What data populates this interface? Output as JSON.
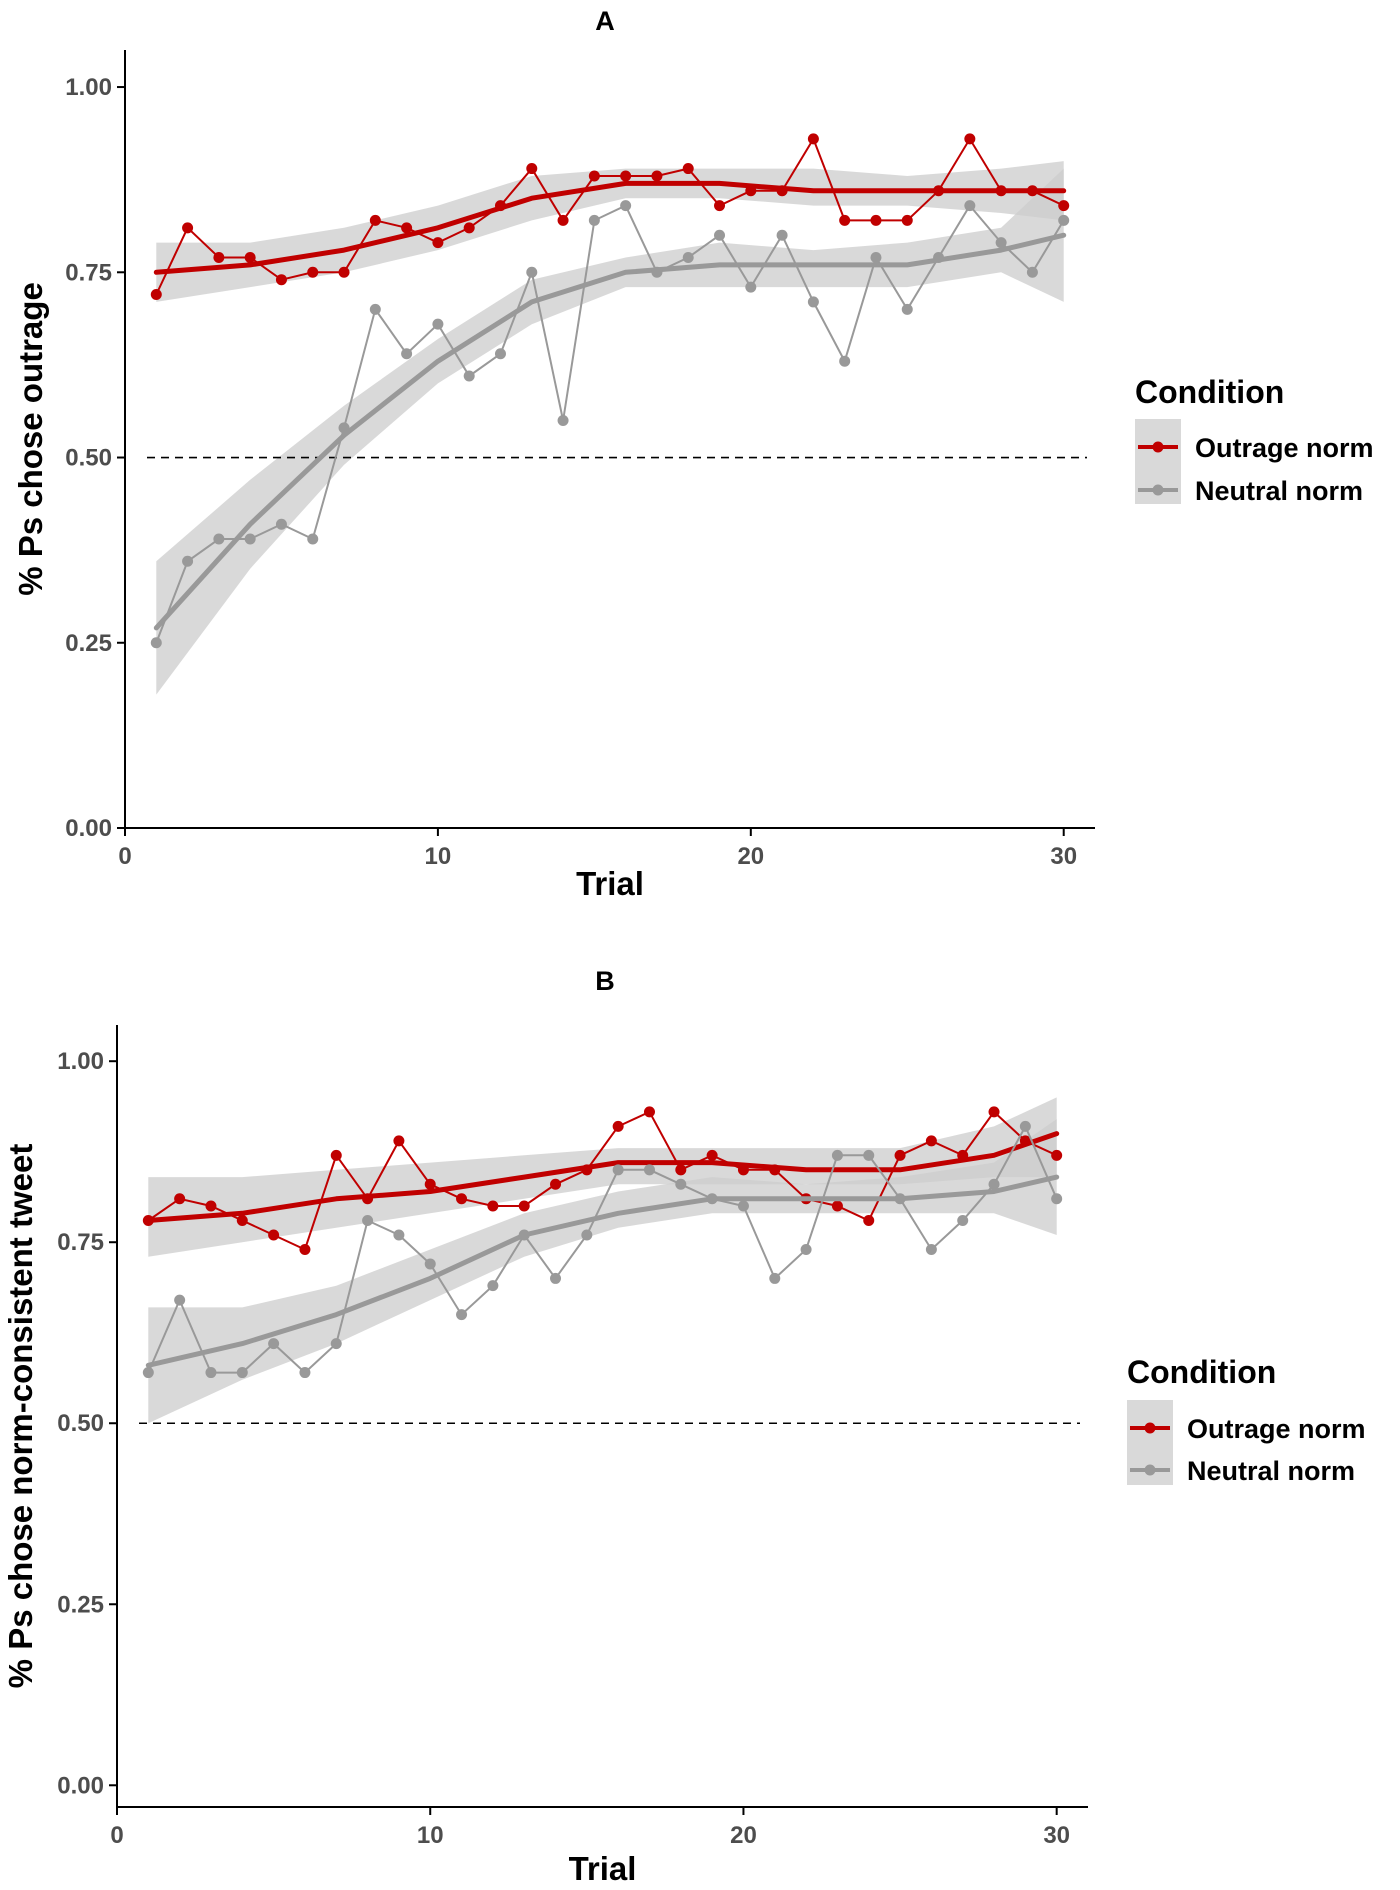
{
  "colors": {
    "outrage": "#c00000",
    "neutral": "#999999",
    "ribbon": "#cccccc",
    "axis": "#000000",
    "tick_text": "#4d4d4d",
    "reference_line": "#000000"
  },
  "chart_data": [
    {
      "type": "line",
      "panel_label": "A",
      "xlabel": "Trial",
      "ylabel": "% Ps chose outrage",
      "xlim": [
        0,
        31
      ],
      "ylim": [
        0,
        1.05
      ],
      "x_ticks": [
        0,
        10,
        20,
        30
      ],
      "x_tick_labels": [
        "0",
        "10",
        "20",
        "30"
      ],
      "y_ticks": [
        0,
        0.25,
        0.5,
        0.75,
        1.0
      ],
      "y_tick_labels": [
        "0.00",
        "0.25",
        "0.50",
        "0.75",
        "1.00"
      ],
      "reference_line": 0.5,
      "grid": false,
      "legend": {
        "title": "Condition",
        "position": "right",
        "entries": [
          "Outrage norm",
          "Neutral norm"
        ]
      },
      "x": [
        1,
        2,
        3,
        4,
        5,
        6,
        7,
        8,
        9,
        10,
        11,
        12,
        13,
        14,
        15,
        16,
        17,
        18,
        19,
        20,
        21,
        22,
        23,
        24,
        25,
        26,
        27,
        28,
        29,
        30
      ],
      "series": [
        {
          "name": "Outrage norm",
          "color_key": "outrage",
          "values": [
            0.72,
            0.81,
            0.77,
            0.77,
            0.74,
            0.75,
            0.75,
            0.82,
            0.81,
            0.79,
            0.81,
            0.84,
            0.89,
            0.82,
            0.88,
            0.88,
            0.88,
            0.89,
            0.84,
            0.86,
            0.86,
            0.93,
            0.82,
            0.82,
            0.82,
            0.86,
            0.93,
            0.86,
            0.86,
            0.84
          ],
          "smooth": {
            "x": [
              1,
              4,
              7,
              10,
              13,
              16,
              19,
              22,
              25,
              28,
              30
            ],
            "y": [
              0.75,
              0.76,
              0.78,
              0.81,
              0.85,
              0.87,
              0.87,
              0.86,
              0.86,
              0.86,
              0.86
            ],
            "lower": [
              0.71,
              0.73,
              0.75,
              0.78,
              0.82,
              0.85,
              0.85,
              0.84,
              0.84,
              0.83,
              0.82
            ],
            "upper": [
              0.79,
              0.79,
              0.81,
              0.84,
              0.88,
              0.89,
              0.89,
              0.89,
              0.88,
              0.89,
              0.9
            ]
          }
        },
        {
          "name": "Neutral norm",
          "color_key": "neutral",
          "values": [
            0.25,
            0.36,
            0.39,
            0.39,
            0.41,
            0.39,
            0.54,
            0.7,
            0.64,
            0.68,
            0.61,
            0.64,
            0.75,
            0.55,
            0.82,
            0.84,
            0.75,
            0.77,
            0.8,
            0.73,
            0.8,
            0.71,
            0.63,
            0.77,
            0.7,
            0.77,
            0.84,
            0.79,
            0.75,
            0.82
          ],
          "smooth": {
            "x": [
              1,
              4,
              7,
              10,
              13,
              16,
              19,
              22,
              25,
              28,
              30
            ],
            "y": [
              0.27,
              0.41,
              0.53,
              0.63,
              0.71,
              0.75,
              0.76,
              0.76,
              0.76,
              0.78,
              0.8
            ],
            "lower": [
              0.18,
              0.35,
              0.49,
              0.6,
              0.68,
              0.73,
              0.73,
              0.73,
              0.73,
              0.75,
              0.71
            ],
            "upper": [
              0.36,
              0.47,
              0.57,
              0.66,
              0.74,
              0.77,
              0.79,
              0.78,
              0.79,
              0.81,
              0.89
            ]
          }
        }
      ]
    },
    {
      "type": "line",
      "panel_label": "B",
      "xlabel": "Trial",
      "ylabel": "% Ps chose norm-consistent tweet",
      "xlim": [
        0,
        31
      ],
      "ylim": [
        -0.03,
        1.05
      ],
      "x_ticks": [
        0,
        10,
        20,
        30
      ],
      "x_tick_labels": [
        "0",
        "10",
        "20",
        "30"
      ],
      "y_ticks": [
        0,
        0.25,
        0.5,
        0.75,
        1.0
      ],
      "y_tick_labels": [
        "0.00",
        "0.25",
        "0.50",
        "0.75",
        "1.00"
      ],
      "reference_line": 0.5,
      "grid": false,
      "legend": {
        "title": "Condition",
        "position": "right",
        "entries": [
          "Outrage norm",
          "Neutral norm"
        ]
      },
      "x": [
        1,
        2,
        3,
        4,
        5,
        6,
        7,
        8,
        9,
        10,
        11,
        12,
        13,
        14,
        15,
        16,
        17,
        18,
        19,
        20,
        21,
        22,
        23,
        24,
        25,
        26,
        27,
        28,
        29,
        30
      ],
      "series": [
        {
          "name": "Outrage norm",
          "color_key": "outrage",
          "values": [
            0.78,
            0.81,
            0.8,
            0.78,
            0.76,
            0.74,
            0.87,
            0.81,
            0.89,
            0.83,
            0.81,
            0.8,
            0.8,
            0.83,
            0.85,
            0.91,
            0.93,
            0.85,
            0.87,
            0.85,
            0.85,
            0.81,
            0.8,
            0.78,
            0.87,
            0.89,
            0.87,
            0.93,
            0.89,
            0.87
          ],
          "smooth": {
            "x": [
              1,
              4,
              7,
              10,
              13,
              16,
              19,
              22,
              25,
              28,
              30
            ],
            "y": [
              0.78,
              0.79,
              0.81,
              0.82,
              0.84,
              0.86,
              0.86,
              0.85,
              0.85,
              0.87,
              0.9
            ],
            "lower": [
              0.73,
              0.75,
              0.77,
              0.79,
              0.81,
              0.83,
              0.83,
              0.83,
              0.83,
              0.84,
              0.84
            ],
            "upper": [
              0.84,
              0.84,
              0.85,
              0.86,
              0.87,
              0.88,
              0.88,
              0.88,
              0.88,
              0.91,
              0.95
            ]
          }
        },
        {
          "name": "Neutral norm",
          "color_key": "neutral",
          "values": [
            0.57,
            0.67,
            0.57,
            0.57,
            0.61,
            0.57,
            0.61,
            0.78,
            0.76,
            0.72,
            0.65,
            0.69,
            0.76,
            0.7,
            0.76,
            0.85,
            0.85,
            0.83,
            0.81,
            0.8,
            0.7,
            0.74,
            0.87,
            0.87,
            0.81,
            0.74,
            0.78,
            0.83,
            0.91,
            0.81
          ],
          "smooth": {
            "x": [
              1,
              4,
              7,
              10,
              13,
              16,
              19,
              22,
              25,
              28,
              30
            ],
            "y": [
              0.58,
              0.61,
              0.65,
              0.7,
              0.76,
              0.79,
              0.81,
              0.81,
              0.81,
              0.82,
              0.84
            ],
            "lower": [
              0.5,
              0.56,
              0.61,
              0.67,
              0.73,
              0.77,
              0.79,
              0.79,
              0.79,
              0.79,
              0.76
            ],
            "upper": [
              0.66,
              0.66,
              0.69,
              0.74,
              0.79,
              0.82,
              0.84,
              0.83,
              0.84,
              0.86,
              0.92
            ]
          }
        }
      ]
    }
  ]
}
